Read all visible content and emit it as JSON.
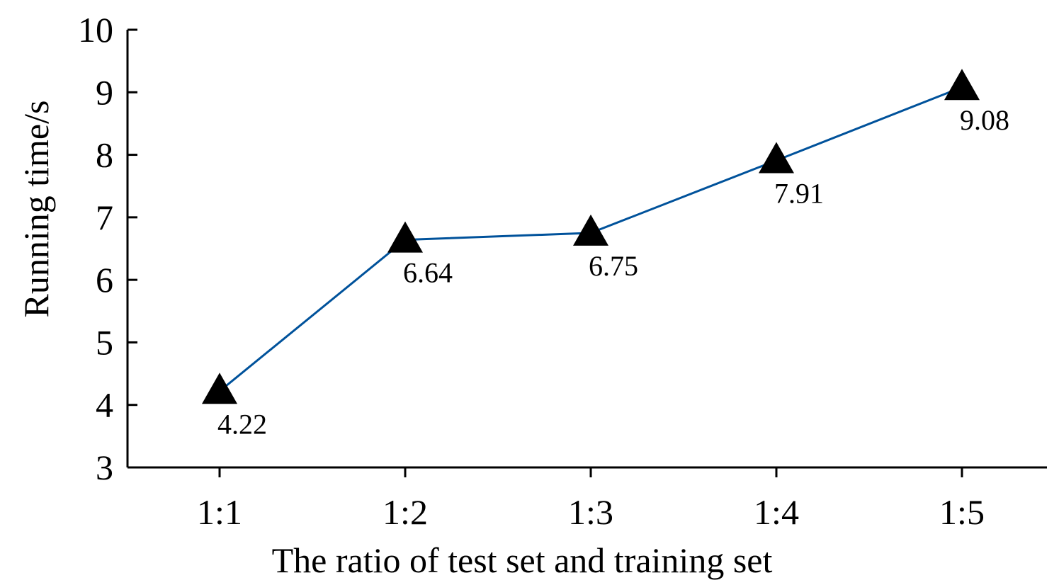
{
  "chart_data": {
    "type": "line",
    "title": "",
    "xlabel": "The ratio of test set and training set",
    "ylabel": "Running time/s",
    "categories": [
      "1:1",
      "1:2",
      "1:3",
      "1:4",
      "1:5"
    ],
    "series": [
      {
        "values": [
          4.22,
          6.64,
          6.75,
          7.91,
          9.08
        ],
        "data_labels": [
          "4.22",
          "6.64",
          "6.75",
          "7.91",
          "9.08"
        ],
        "color": "#00529b",
        "marker": "triangle",
        "marker_color": "#000000"
      }
    ],
    "ylim": [
      3,
      10
    ],
    "yticks": [
      3,
      4,
      5,
      6,
      7,
      8,
      9,
      10
    ],
    "grid": false,
    "legend": "none"
  }
}
